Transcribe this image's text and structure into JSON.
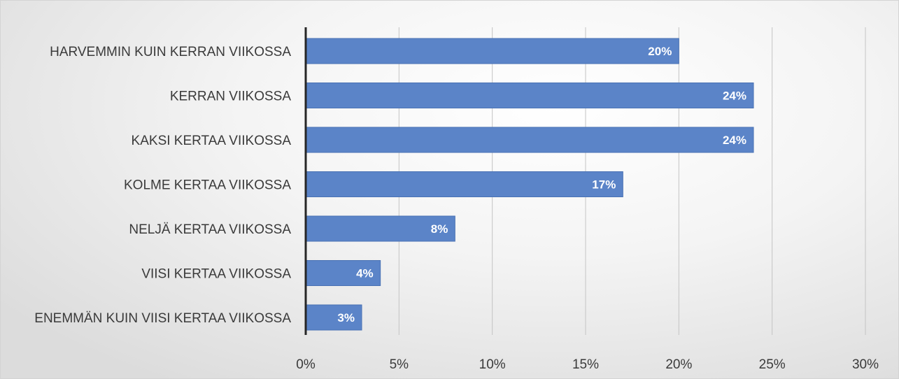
{
  "chart_data": {
    "type": "bar",
    "orientation": "horizontal",
    "categories": [
      "HARVEMMIN KUIN KERRAN VIIKOSSA",
      "KERRAN VIIKOSSA",
      "KAKSI KERTAA VIIKOSSA",
      "KOLME KERTAA VIIKOSSA",
      "NELJÄ KERTAA VIIKOSSA",
      "VIISI KERTAA VIIKOSSA",
      "ENEMMÄN KUIN VIISI KERTAA VIIKOSSA"
    ],
    "values": [
      20,
      24,
      24,
      17,
      8,
      4,
      3
    ],
    "data_labels": [
      "20%",
      "24%",
      "24%",
      "17%",
      "8%",
      "4%",
      "3%"
    ],
    "xlim": [
      0,
      30
    ],
    "x_ticks": [
      0,
      5,
      10,
      15,
      20,
      25,
      30
    ],
    "x_tick_labels": [
      "0%",
      "5%",
      "10%",
      "15%",
      "20%",
      "25%",
      "30%"
    ],
    "title": "",
    "xlabel": "",
    "ylabel": "",
    "grid": "vertical",
    "legend": "none",
    "colors": {
      "bar": "#5b84c8",
      "bar_edge": "#4a72b4",
      "data_label": "#ffffff",
      "text": "#3a3a3a",
      "grid": "#c4c4c4",
      "axis": "#262626"
    }
  }
}
